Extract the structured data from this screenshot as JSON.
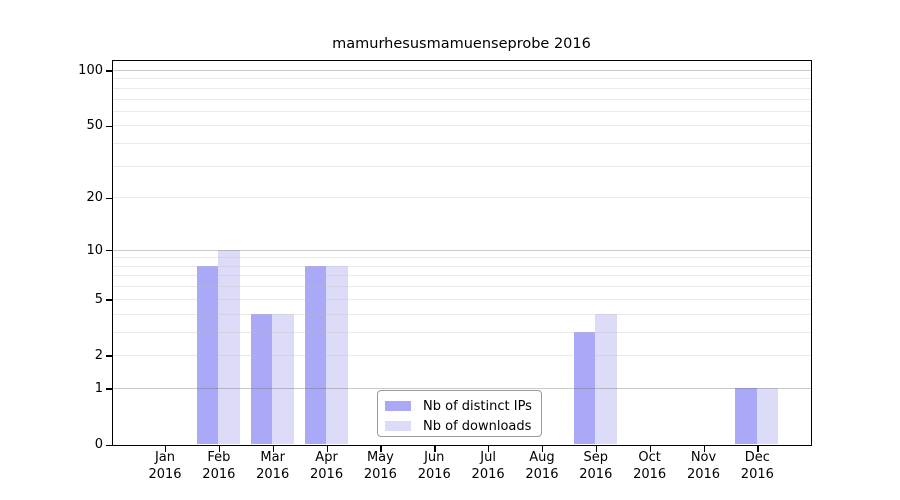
{
  "chart_data": {
    "type": "bar",
    "title": "mamurhesusmamuenseprobe 2016",
    "categories": [
      "Jan",
      "Feb",
      "Mar",
      "Apr",
      "May",
      "Jun",
      "Jul",
      "Aug",
      "Sep",
      "Oct",
      "Nov",
      "Dec"
    ],
    "year": "2016",
    "series": [
      {
        "name": "Nb of distinct IPs",
        "color": "#a9a9f7",
        "values": [
          0,
          8,
          4,
          8,
          0,
          0,
          0,
          0,
          3,
          0,
          0,
          1
        ]
      },
      {
        "name": "Nb of downloads",
        "color": "#dcdcf8",
        "values": [
          0,
          10,
          4,
          8,
          0,
          0,
          0,
          0,
          4,
          0,
          0,
          1
        ]
      }
    ],
    "yscale": "log10(1+v)",
    "yticks": [
      0,
      1,
      2,
      5,
      10,
      20,
      50,
      100
    ],
    "gridlines": {
      "major": [
        1,
        10,
        100
      ],
      "minor": [
        2,
        3,
        4,
        5,
        6,
        7,
        8,
        9,
        20,
        30,
        40,
        50,
        60,
        70,
        80,
        90
      ]
    },
    "ylim": [
      0,
      113
    ],
    "grid": true,
    "legend_position": "bottom-center",
    "colors": {
      "axis": "#000000",
      "major_grid": "#c9c9c9",
      "minor_grid": "#ededed",
      "background": "#ffffff"
    }
  }
}
